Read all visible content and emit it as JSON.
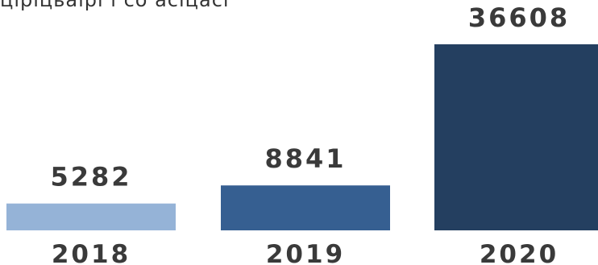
{
  "chart_data": {
    "type": "bar",
    "title": "",
    "partial_title_text": "ціріцьаірі і со асіцасі",
    "categories": [
      "2018",
      "2019",
      "2020"
    ],
    "values": [
      5282,
      8841,
      36608
    ],
    "value_labels": [
      "5282",
      "8841",
      "36608"
    ],
    "xlabel": "",
    "ylabel": "",
    "ylim": [
      0,
      36608
    ],
    "grid": false,
    "legend": "none",
    "colors": [
      "#95b3d7",
      "#365f91",
      "#243f60"
    ]
  }
}
